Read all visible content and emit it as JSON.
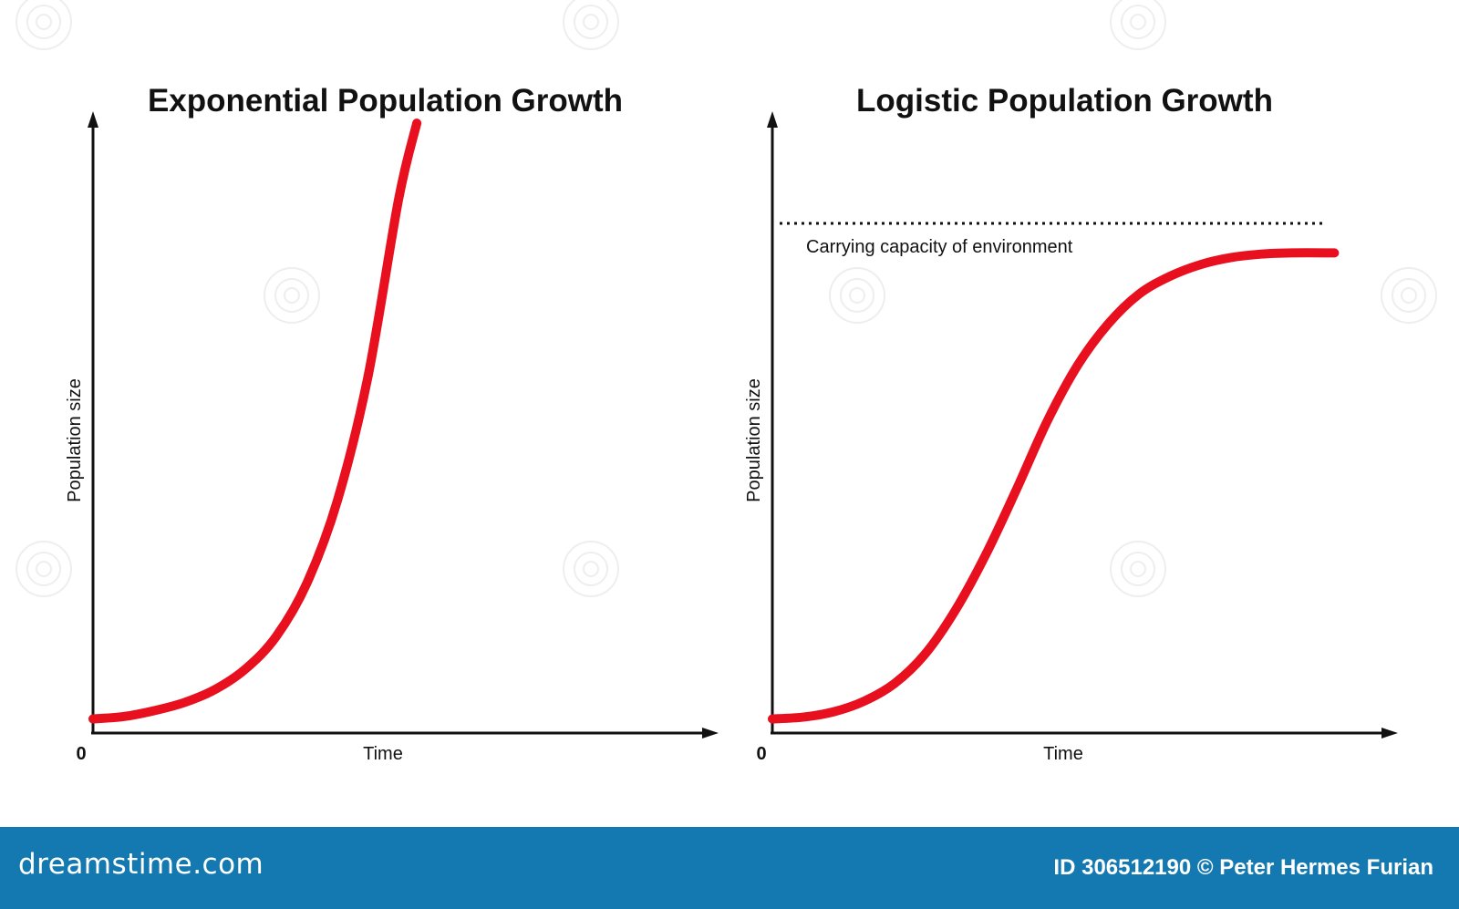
{
  "chart_data": [
    {
      "type": "line",
      "title": "Exponential Population Growth",
      "xlabel": "Time",
      "ylabel": "Population size",
      "origin_label": "0",
      "xlim": [
        0,
        10
      ],
      "ylim": [
        0,
        10
      ],
      "series": [
        {
          "color": "#e8101f",
          "x": [
            0,
            0.5,
            1,
            1.5,
            2,
            2.5,
            3,
            3.5,
            4,
            4.5,
            5,
            5.3
          ],
          "y": [
            0.1,
            0.14,
            0.24,
            0.38,
            0.6,
            0.95,
            1.5,
            2.4,
            3.8,
            5.9,
            8.9,
            10.2
          ]
        }
      ],
      "grid": false
    },
    {
      "type": "line",
      "title": "Logistic Population Growth",
      "xlabel": "Time",
      "ylabel": "Population size",
      "origin_label": "0",
      "xlim": [
        0,
        10
      ],
      "ylim": [
        0,
        10
      ],
      "carrying_capacity": {
        "label": "Carrying capacity of environment",
        "y": 8.5,
        "style": "dotted"
      },
      "series": [
        {
          "color": "#e8101f",
          "x": [
            0,
            0.5,
            1,
            1.5,
            2,
            2.5,
            3,
            3.5,
            4,
            4.5,
            5,
            5.5,
            6,
            6.5,
            7,
            7.5,
            8,
            8.5,
            9.2
          ],
          "y": [
            0.1,
            0.13,
            0.22,
            0.4,
            0.7,
            1.2,
            1.95,
            2.9,
            4.0,
            5.15,
            6.1,
            6.8,
            7.3,
            7.6,
            7.8,
            7.92,
            7.98,
            8.0,
            8.0
          ]
        }
      ],
      "grid": false
    }
  ],
  "footer": {
    "brand": "dreamstime.com",
    "credit": "ID 306512190 © Peter Hermes Furian",
    "background": "#1479b0"
  }
}
